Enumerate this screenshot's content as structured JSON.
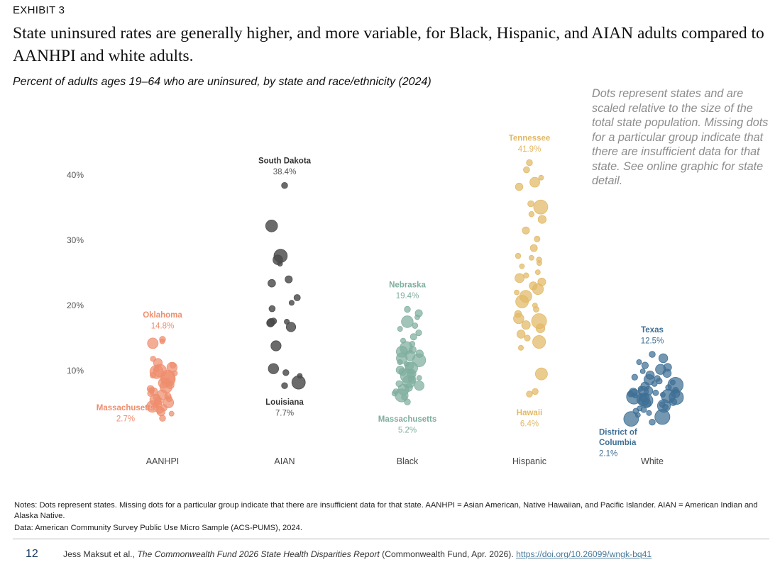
{
  "header": {
    "exhibit": "EXHIBIT 3",
    "title": "State uninsured rates are generally higher, and more variable, for Black, Hispanic, and AIAN adults compared to AANHPI and white adults.",
    "subtitle": "Percent of adults ages 19–64 who are uninsured, by state and race/ethnicity (2024)"
  },
  "overlay_note": "Dots represent states and are scaled relative to the size of the total state population. Missing dots for a particular group indicate that there are insufficient data for that state. See online graphic for state detail.",
  "chart_data": {
    "type": "scatter",
    "categories": [
      "AANHPI",
      "AIAN",
      "Black",
      "Hispanic",
      "White"
    ],
    "y_ticks": [
      "10%",
      "20%",
      "30%",
      "40%"
    ],
    "ylim": [
      0,
      44
    ],
    "grid": false,
    "series": [
      {
        "name": "AANHPI",
        "color": "#EE8E6E",
        "annotations": [
          {
            "state": "Oklahoma",
            "value": 14.8,
            "label": "14.8%"
          },
          {
            "state": "Massachusetts",
            "value": 2.7,
            "label": "2.7%"
          }
        ],
        "values": [
          14.8,
          14.2,
          14.5,
          11.8,
          11.2,
          10.8,
          10.5,
          10.2,
          10.0,
          9.8,
          9.6,
          9.3,
          9.0,
          8.7,
          8.4,
          8.1,
          7.8,
          7.5,
          7.2,
          7.0,
          6.8,
          6.5,
          6.3,
          6.1,
          5.9,
          5.7,
          5.5,
          5.3,
          5.1,
          4.9,
          4.7,
          4.5,
          4.3,
          4.0,
          3.7,
          3.4,
          2.7
        ]
      },
      {
        "name": "AIAN",
        "color": "#4a4a4a",
        "annotations": [
          {
            "state": "South Dakota",
            "value": 38.4,
            "label": "38.4%"
          },
          {
            "state": "Louisiana",
            "value": 7.7,
            "label": "7.7%"
          }
        ],
        "values": [
          38.4,
          32.2,
          27.6,
          27.0,
          26.4,
          24.0,
          23.4,
          21.2,
          20.4,
          19.5,
          17.6,
          17.5,
          17.4,
          17.3,
          16.7,
          13.8,
          10.3,
          9.7,
          9.2,
          8.2,
          7.7
        ]
      },
      {
        "name": "Black",
        "color": "#7FAE9E",
        "annotations": [
          {
            "state": "Nebraska",
            "value": 19.4,
            "label": "19.4%"
          },
          {
            "state": "Massachusetts",
            "value": 5.2,
            "label": "5.2%"
          }
        ],
        "values": [
          19.4,
          18.8,
          18.2,
          17.5,
          16.9,
          16.4,
          15.8,
          15.2,
          14.6,
          14.1,
          13.5,
          13.2,
          12.9,
          12.6,
          12.3,
          11.9,
          11.6,
          11.3,
          11.0,
          10.7,
          10.4,
          10.1,
          9.8,
          9.5,
          9.2,
          8.9,
          8.6,
          8.3,
          8.0,
          7.7,
          7.4,
          7.1,
          6.8,
          6.5,
          6.2,
          5.9,
          5.2
        ]
      },
      {
        "name": "Hispanic",
        "color": "#E2B865",
        "annotations": [
          {
            "state": "Tennessee",
            "value": 41.9,
            "label": "41.9%"
          },
          {
            "state": "Hawaii",
            "value": 6.4,
            "label": "6.4%"
          }
        ],
        "values": [
          41.9,
          40.8,
          39.6,
          38.9,
          38.2,
          35.6,
          35.1,
          34.0,
          33.2,
          31.5,
          30.2,
          28.8,
          27.6,
          27.3,
          27.0,
          26.5,
          26.0,
          25.1,
          24.6,
          24.2,
          23.6,
          23.0,
          22.5,
          22.0,
          21.4,
          20.6,
          20.0,
          19.4,
          18.7,
          18.0,
          17.6,
          17.0,
          16.5,
          15.6,
          15.0,
          14.4,
          13.5,
          9.5,
          6.8,
          6.4
        ]
      },
      {
        "name": "White",
        "color": "#3E6F94",
        "annotations": [
          {
            "state": "Texas",
            "value": 12.5,
            "label": "12.5%"
          },
          {
            "state": "District of Columbia",
            "label_lines": [
              "District of",
              "Columbia"
            ],
            "value": 2.1,
            "label": "2.1%"
          }
        ],
        "values": [
          12.5,
          11.9,
          11.3,
          10.8,
          10.5,
          10.2,
          9.9,
          9.6,
          9.3,
          9.0,
          8.8,
          8.6,
          8.4,
          8.2,
          8.0,
          7.8,
          7.6,
          7.4,
          7.2,
          7.0,
          6.9,
          6.8,
          6.7,
          6.6,
          6.5,
          6.4,
          6.3,
          6.2,
          6.1,
          6.0,
          5.9,
          5.8,
          5.6,
          5.4,
          5.2,
          5.0,
          4.8,
          4.6,
          4.4,
          4.2,
          4.0,
          3.8,
          3.5,
          3.2,
          2.9,
          2.6,
          2.1
        ]
      }
    ]
  },
  "footnotes": {
    "notes": "Notes: Dots represent states. Missing dots for a particular group indicate that there are insufficient data for that state. AANHPI = Asian American, Native Hawaiian, and Pacific Islander. AIAN = American Indian and Alaska Native.",
    "data": "Data: American Community Survey Public Use Micro Sample (ACS-PUMS), 2024."
  },
  "footer": {
    "page_number": "12",
    "citation_prefix": "Jess Maksut et al., ",
    "citation_title": "The Commonwealth Fund 2026 State Health Disparities Report",
    "citation_suffix": " (Commonwealth Fund, Apr. 2026). ",
    "url": "https://doi.org/10.26099/wngk-bq41"
  }
}
